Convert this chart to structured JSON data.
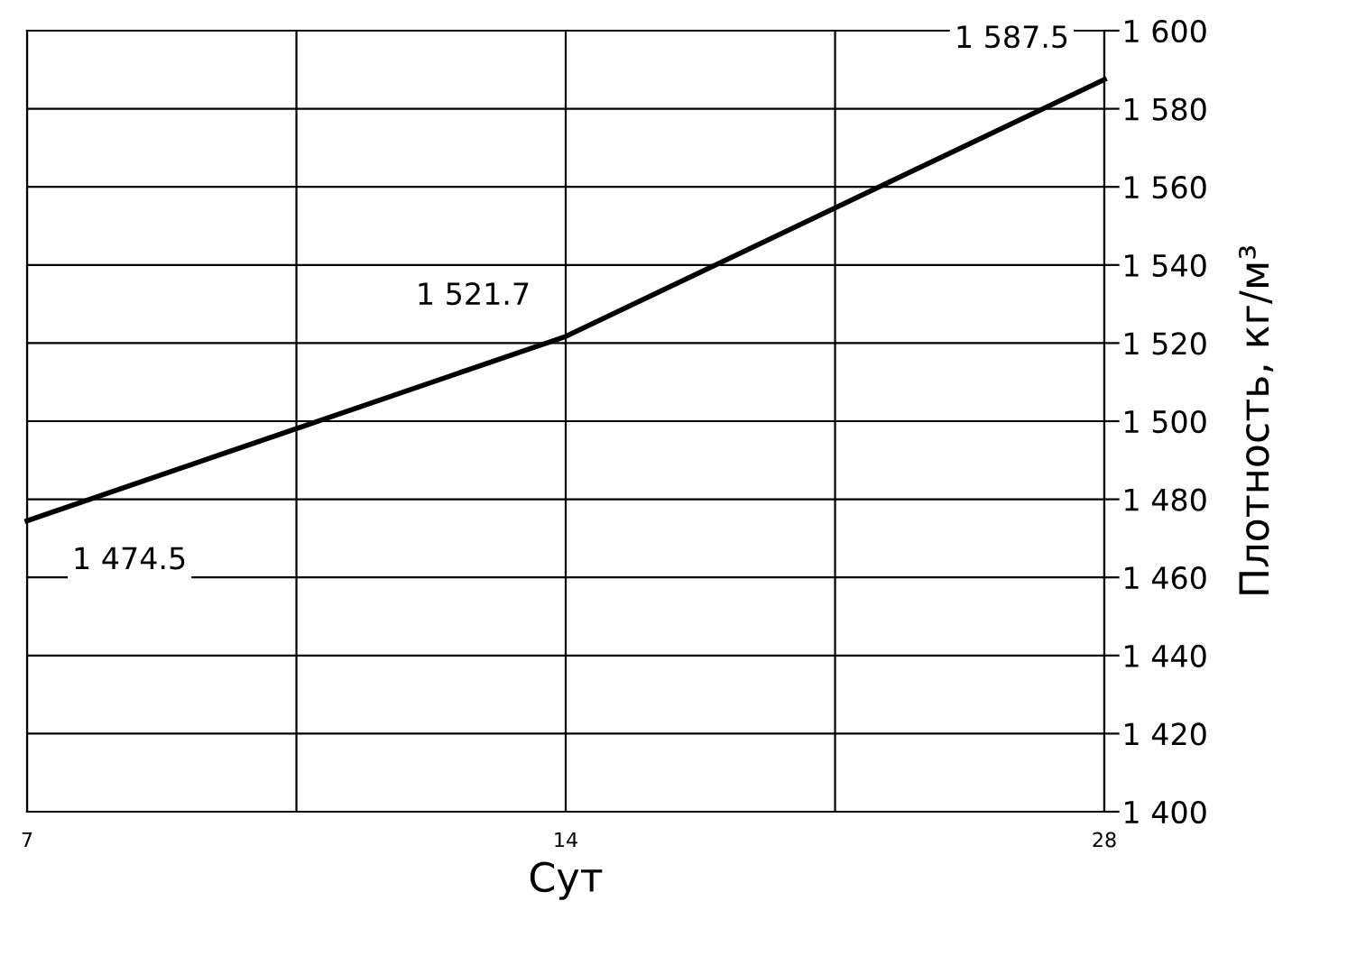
{
  "chart_data": {
    "type": "line",
    "xlabel": "Сут",
    "ylabel": "Плотность, кг/м³",
    "log": "x",
    "x": [
      7,
      14,
      28
    ],
    "series": [
      {
        "color": "#000000",
        "values": [
          1474.5,
          1521.7,
          1587.5
        ],
        "value_labels": [
          "1 474.5",
          "1 521.7",
          "1 587.5"
        ]
      }
    ],
    "xlim": [
      7,
      28
    ],
    "xticks": [
      7,
      {
        "value": 9.9,
        "label": null
      },
      14,
      {
        "value": 19.8,
        "label": null
      },
      28
    ],
    "ylim": [
      1400,
      1600
    ],
    "yticks": [
      {
        "value": 1400,
        "label": "1 400"
      },
      {
        "value": 1420,
        "label": "1 420"
      },
      {
        "value": 1440,
        "label": "1 440"
      },
      {
        "value": 1460,
        "label": "1 460"
      },
      {
        "value": 1480,
        "label": "1 480"
      },
      {
        "value": 1500,
        "label": "1 500"
      },
      {
        "value": 1520,
        "label": "1 520"
      },
      {
        "value": 1540,
        "label": "1 540"
      },
      {
        "value": 1560,
        "label": "1 560"
      },
      {
        "value": 1580,
        "label": "1 580"
      },
      {
        "value": 1600,
        "label": "1 600"
      }
    ],
    "grid": true,
    "marker": "none",
    "line_style": "solid",
    "legend": false
  }
}
